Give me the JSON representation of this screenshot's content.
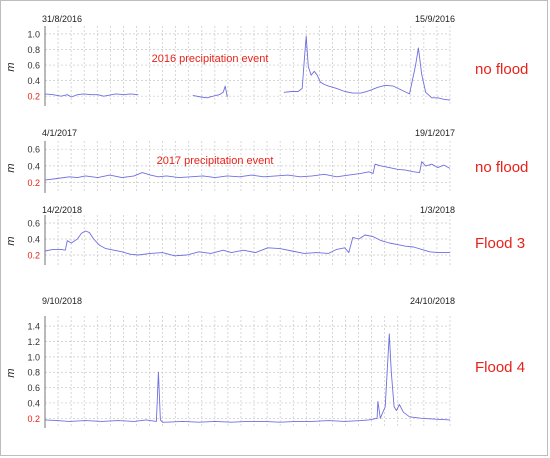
{
  "colors": {
    "series": "#6f6fe0",
    "annotation": "#e8221a",
    "first_tick": "#e8221a",
    "tick_text": "#333333",
    "grid": "#c8c8c8",
    "axis": "#555555"
  },
  "chart_data": [
    {
      "type": "line",
      "xstart_label": "31/8/2016",
      "xend_label": "15/9/2016",
      "ylabel": "m",
      "yticks": [
        "0.2",
        "0.4",
        "0.6",
        "0.8",
        "1.0"
      ],
      "ylim": [
        0.1,
        1.05
      ],
      "grid": true,
      "annotation": "2016 precipitation event",
      "status": "no flood",
      "segments": [
        {
          "x": [
            0.0,
            0.02,
            0.04,
            0.055,
            0.065,
            0.08,
            0.095,
            0.115,
            0.13,
            0.145,
            0.165,
            0.175,
            0.195,
            0.21,
            0.23
          ],
          "y": [
            0.23,
            0.22,
            0.2,
            0.22,
            0.19,
            0.22,
            0.23,
            0.22,
            0.22,
            0.2,
            0.22,
            0.23,
            0.22,
            0.23,
            0.22
          ]
        },
        {
          "x": [
            0.365,
            0.385,
            0.4,
            0.415,
            0.43,
            0.44,
            0.445,
            0.45
          ],
          "y": [
            0.21,
            0.19,
            0.18,
            0.2,
            0.22,
            0.25,
            0.33,
            0.19
          ]
        },
        {
          "x": [
            0.59,
            0.61,
            0.625,
            0.635,
            0.64,
            0.645,
            0.65,
            0.657,
            0.665,
            0.672,
            0.68,
            0.69,
            0.7,
            0.72,
            0.74,
            0.76,
            0.78,
            0.8,
            0.82,
            0.84,
            0.86,
            0.88,
            0.9,
            0.915,
            0.922,
            0.93,
            0.94,
            0.955,
            0.97,
            0.985,
            1.0
          ],
          "y": [
            0.25,
            0.26,
            0.26,
            0.3,
            0.65,
            0.97,
            0.58,
            0.47,
            0.52,
            0.47,
            0.38,
            0.35,
            0.33,
            0.3,
            0.26,
            0.24,
            0.24,
            0.27,
            0.31,
            0.34,
            0.33,
            0.28,
            0.23,
            0.6,
            0.82,
            0.48,
            0.25,
            0.18,
            0.18,
            0.16,
            0.15
          ]
        }
      ]
    },
    {
      "type": "line",
      "xstart_label": "4/1/2017",
      "xend_label": "19/1/2017",
      "ylabel": "m",
      "yticks": [
        "0.2",
        "0.4",
        "0.6"
      ],
      "ylim": [
        0.1,
        0.65
      ],
      "grid": true,
      "annotation": "2017 precipitation event",
      "status": "no flood",
      "segments": [
        {
          "x": [
            0.0,
            0.03,
            0.06,
            0.08,
            0.1,
            0.13,
            0.16,
            0.19,
            0.22,
            0.24,
            0.26,
            0.28,
            0.3,
            0.33,
            0.36,
            0.39,
            0.42,
            0.45,
            0.48,
            0.51,
            0.54,
            0.57,
            0.6,
            0.63,
            0.66,
            0.69,
            0.72,
            0.75,
            0.78,
            0.8,
            0.81,
            0.815,
            0.83,
            0.85,
            0.87,
            0.89,
            0.91,
            0.925,
            0.93,
            0.94,
            0.955,
            0.97,
            0.985,
            1.0
          ],
          "y": [
            0.23,
            0.25,
            0.27,
            0.26,
            0.28,
            0.26,
            0.29,
            0.26,
            0.28,
            0.32,
            0.29,
            0.27,
            0.28,
            0.26,
            0.27,
            0.28,
            0.26,
            0.28,
            0.27,
            0.29,
            0.27,
            0.28,
            0.29,
            0.27,
            0.28,
            0.3,
            0.27,
            0.29,
            0.31,
            0.33,
            0.31,
            0.42,
            0.4,
            0.38,
            0.36,
            0.35,
            0.33,
            0.32,
            0.45,
            0.4,
            0.42,
            0.38,
            0.41,
            0.37
          ]
        }
      ]
    },
    {
      "type": "line",
      "xstart_label": "14/2/2018",
      "xend_label": "1/3/2018",
      "ylabel": "m",
      "yticks": [
        "0.2",
        "0.4",
        "0.6"
      ],
      "ylim": [
        0.1,
        0.65
      ],
      "grid": true,
      "status": "Flood 3",
      "segments": [
        {
          "x": [
            0.0,
            0.02,
            0.04,
            0.05,
            0.055,
            0.065,
            0.08,
            0.09,
            0.1,
            0.11,
            0.12,
            0.135,
            0.15,
            0.17,
            0.19,
            0.21,
            0.23,
            0.26,
            0.29,
            0.32,
            0.35,
            0.38,
            0.41,
            0.44,
            0.46,
            0.49,
            0.52,
            0.55,
            0.58,
            0.61,
            0.64,
            0.67,
            0.7,
            0.72,
            0.74,
            0.75,
            0.76,
            0.775,
            0.79,
            0.81,
            0.83,
            0.85,
            0.87,
            0.89,
            0.91,
            0.93,
            0.95,
            0.97,
            1.0
          ],
          "y": [
            0.25,
            0.27,
            0.27,
            0.26,
            0.38,
            0.35,
            0.4,
            0.47,
            0.5,
            0.48,
            0.4,
            0.32,
            0.28,
            0.26,
            0.24,
            0.21,
            0.2,
            0.22,
            0.23,
            0.19,
            0.2,
            0.24,
            0.22,
            0.26,
            0.23,
            0.26,
            0.23,
            0.29,
            0.28,
            0.25,
            0.22,
            0.23,
            0.22,
            0.27,
            0.29,
            0.23,
            0.42,
            0.4,
            0.45,
            0.43,
            0.38,
            0.35,
            0.33,
            0.31,
            0.3,
            0.27,
            0.24,
            0.23,
            0.23
          ]
        }
      ]
    },
    {
      "type": "line",
      "xstart_label": "9/10/2018",
      "xend_label": "24/10/2018",
      "ylabel": "m",
      "yticks": [
        "0.2",
        "0.4",
        "0.6",
        "0.8",
        "1.0",
        "1.2",
        "1.4"
      ],
      "ylim": [
        0.1,
        1.48
      ],
      "grid": true,
      "status": "Flood 4",
      "segments": [
        {
          "x": [
            0.0,
            0.03,
            0.06,
            0.1,
            0.14,
            0.18,
            0.22,
            0.25,
            0.275,
            0.28,
            0.285,
            0.29,
            0.3,
            0.34,
            0.38,
            0.42,
            0.46,
            0.5,
            0.54,
            0.58,
            0.62,
            0.66,
            0.7,
            0.74,
            0.78,
            0.8,
            0.82,
            0.822,
            0.828,
            0.84,
            0.85,
            0.855,
            0.862,
            0.868,
            0.875,
            0.885,
            0.9,
            0.93,
            0.96,
            1.0
          ],
          "y": [
            0.18,
            0.17,
            0.16,
            0.17,
            0.16,
            0.17,
            0.16,
            0.18,
            0.16,
            0.8,
            0.18,
            0.15,
            0.15,
            0.16,
            0.15,
            0.16,
            0.15,
            0.16,
            0.16,
            0.15,
            0.16,
            0.16,
            0.17,
            0.16,
            0.17,
            0.18,
            0.2,
            0.42,
            0.2,
            0.35,
            1.3,
            0.8,
            0.35,
            0.3,
            0.38,
            0.28,
            0.22,
            0.2,
            0.19,
            0.18
          ]
        }
      ]
    }
  ]
}
